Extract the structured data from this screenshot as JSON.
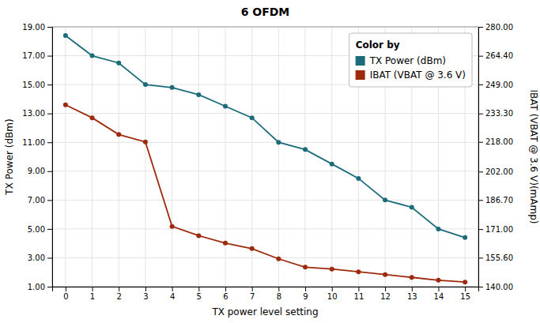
{
  "chart_data": {
    "type": "line",
    "title": "6 OFDM",
    "xlabel": "TX power level setting",
    "ylabel": "TX Power (dBm)",
    "y2label": "IBAT (VBAT @ 3.6 V)(mAmp)",
    "x": [
      0,
      1,
      2,
      3,
      4,
      5,
      6,
      7,
      8,
      9,
      10,
      11,
      12,
      13,
      14,
      15
    ],
    "xlim": [
      -0.5,
      15.5
    ],
    "xticks": [
      0,
      1,
      2,
      3,
      4,
      5,
      6,
      7,
      8,
      9,
      10,
      11,
      12,
      13,
      14,
      15
    ],
    "ylim": [
      1.0,
      19.0
    ],
    "yticks": [
      {
        "value": 1.0,
        "label": "1.00"
      },
      {
        "value": 3.0,
        "label": "3.00"
      },
      {
        "value": 5.0,
        "label": "5.00"
      },
      {
        "value": 7.0,
        "label": "7.00"
      },
      {
        "value": 9.0,
        "label": "9.00"
      },
      {
        "value": 11.0,
        "label": "11.00"
      },
      {
        "value": 13.0,
        "label": "13.00"
      },
      {
        "value": 15.0,
        "label": "15.00"
      },
      {
        "value": 17.0,
        "label": "17.00"
      },
      {
        "value": 19.0,
        "label": "19.00"
      }
    ],
    "y2lim": [
      140.0,
      280.0
    ],
    "y2ticks": [
      {
        "value": 140.0,
        "label": "140.00"
      },
      {
        "value": 155.6,
        "label": "155.60"
      },
      {
        "value": 171.0,
        "label": "171.00"
      },
      {
        "value": 186.7,
        "label": "186.70"
      },
      {
        "value": 202.0,
        "label": "202.00"
      },
      {
        "value": 218.0,
        "label": "218.00"
      },
      {
        "value": 233.3,
        "label": "233.30"
      },
      {
        "value": 249.0,
        "label": "249.00"
      },
      {
        "value": 264.4,
        "label": "264.40"
      },
      {
        "value": 280.0,
        "label": "280.00"
      }
    ],
    "series": [
      {
        "name": "TX Power (dBm)",
        "color": "#1b6b7b",
        "marker": "circle",
        "values": [
          18.4,
          17.0,
          16.5,
          15.0,
          14.8,
          14.3,
          13.5,
          12.7,
          11.0,
          10.5,
          9.5,
          8.5,
          7.0,
          6.5,
          5.0,
          4.4
        ]
      },
      {
        "name": "IBAT (VBAT @ 3.6 V)",
        "color": "#9e2a0e",
        "marker": "circle",
        "axis": "y2",
        "values": [
          238.0,
          231.0,
          222.0,
          218.0,
          172.5,
          167.5,
          163.5,
          160.5,
          155.0,
          150.5,
          149.5,
          148.0,
          146.5,
          145.0,
          143.5,
          142.5
        ]
      }
    ],
    "grid": true,
    "legend": "upper right",
    "legend_title": "Color by"
  }
}
